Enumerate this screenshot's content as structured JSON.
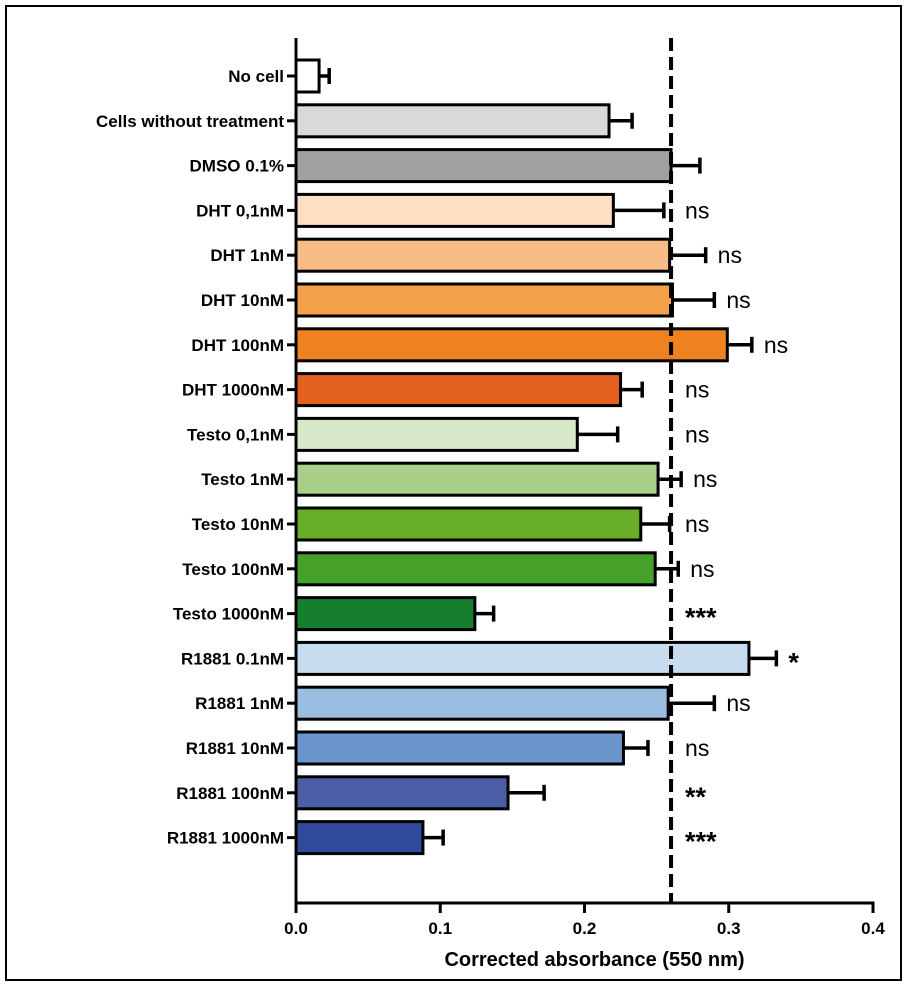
{
  "chart_data": {
    "type": "bar",
    "orientation": "horizontal",
    "title": "",
    "xlabel": "Corrected absorbance (550 nm)",
    "ylabel": "",
    "xlim": [
      0.0,
      0.4
    ],
    "xticks": [
      "0.0",
      "0.1",
      "0.2",
      "0.3",
      "0.4"
    ],
    "reference_line": {
      "value": 0.26,
      "style": "dashed"
    },
    "categories": [
      "No cell",
      "Cells without treatment",
      "DMSO 0.1%",
      "DHT 0,1nM",
      "DHT 1nM",
      "DHT 10nM",
      "DHT 100nM",
      "DHT 1000nM",
      "Testo 0,1nM",
      "Testo 1nM",
      "Testo 10nM",
      "Testo 100nM",
      "Testo 1000nM",
      "R1881 0.1nM",
      "R1881 1nM",
      "R1881 10nM",
      "R1881 100nM",
      "R1881 1000nM"
    ],
    "values": [
      0.016,
      0.217,
      0.26,
      0.22,
      0.259,
      0.261,
      0.299,
      0.225,
      0.195,
      0.251,
      0.239,
      0.249,
      0.124,
      0.314,
      0.258,
      0.227,
      0.147,
      0.088
    ],
    "errors": [
      0.007,
      0.016,
      0.02,
      0.035,
      0.025,
      0.029,
      0.017,
      0.015,
      0.028,
      0.016,
      0.02,
      0.016,
      0.013,
      0.019,
      0.032,
      0.017,
      0.025,
      0.014
    ],
    "significance": [
      "",
      "",
      "",
      "ns",
      "ns",
      "ns",
      "ns",
      "ns",
      "ns",
      "ns",
      "ns",
      "ns",
      "***",
      "*",
      "ns",
      "ns",
      "**",
      "***"
    ],
    "colors": [
      "#ffffff",
      "#d9d9d9",
      "#a0a0a0",
      "#fde0c4",
      "#f8bd86",
      "#f4a24a",
      "#ee8221",
      "#e4601f",
      "#d6e8c7",
      "#a9cf8a",
      "#68ae28",
      "#46a12a",
      "#167f2e",
      "#c8dcf0",
      "#9cbde2",
      "#6b96cc",
      "#4b5ea6",
      "#2f4a9b"
    ]
  }
}
